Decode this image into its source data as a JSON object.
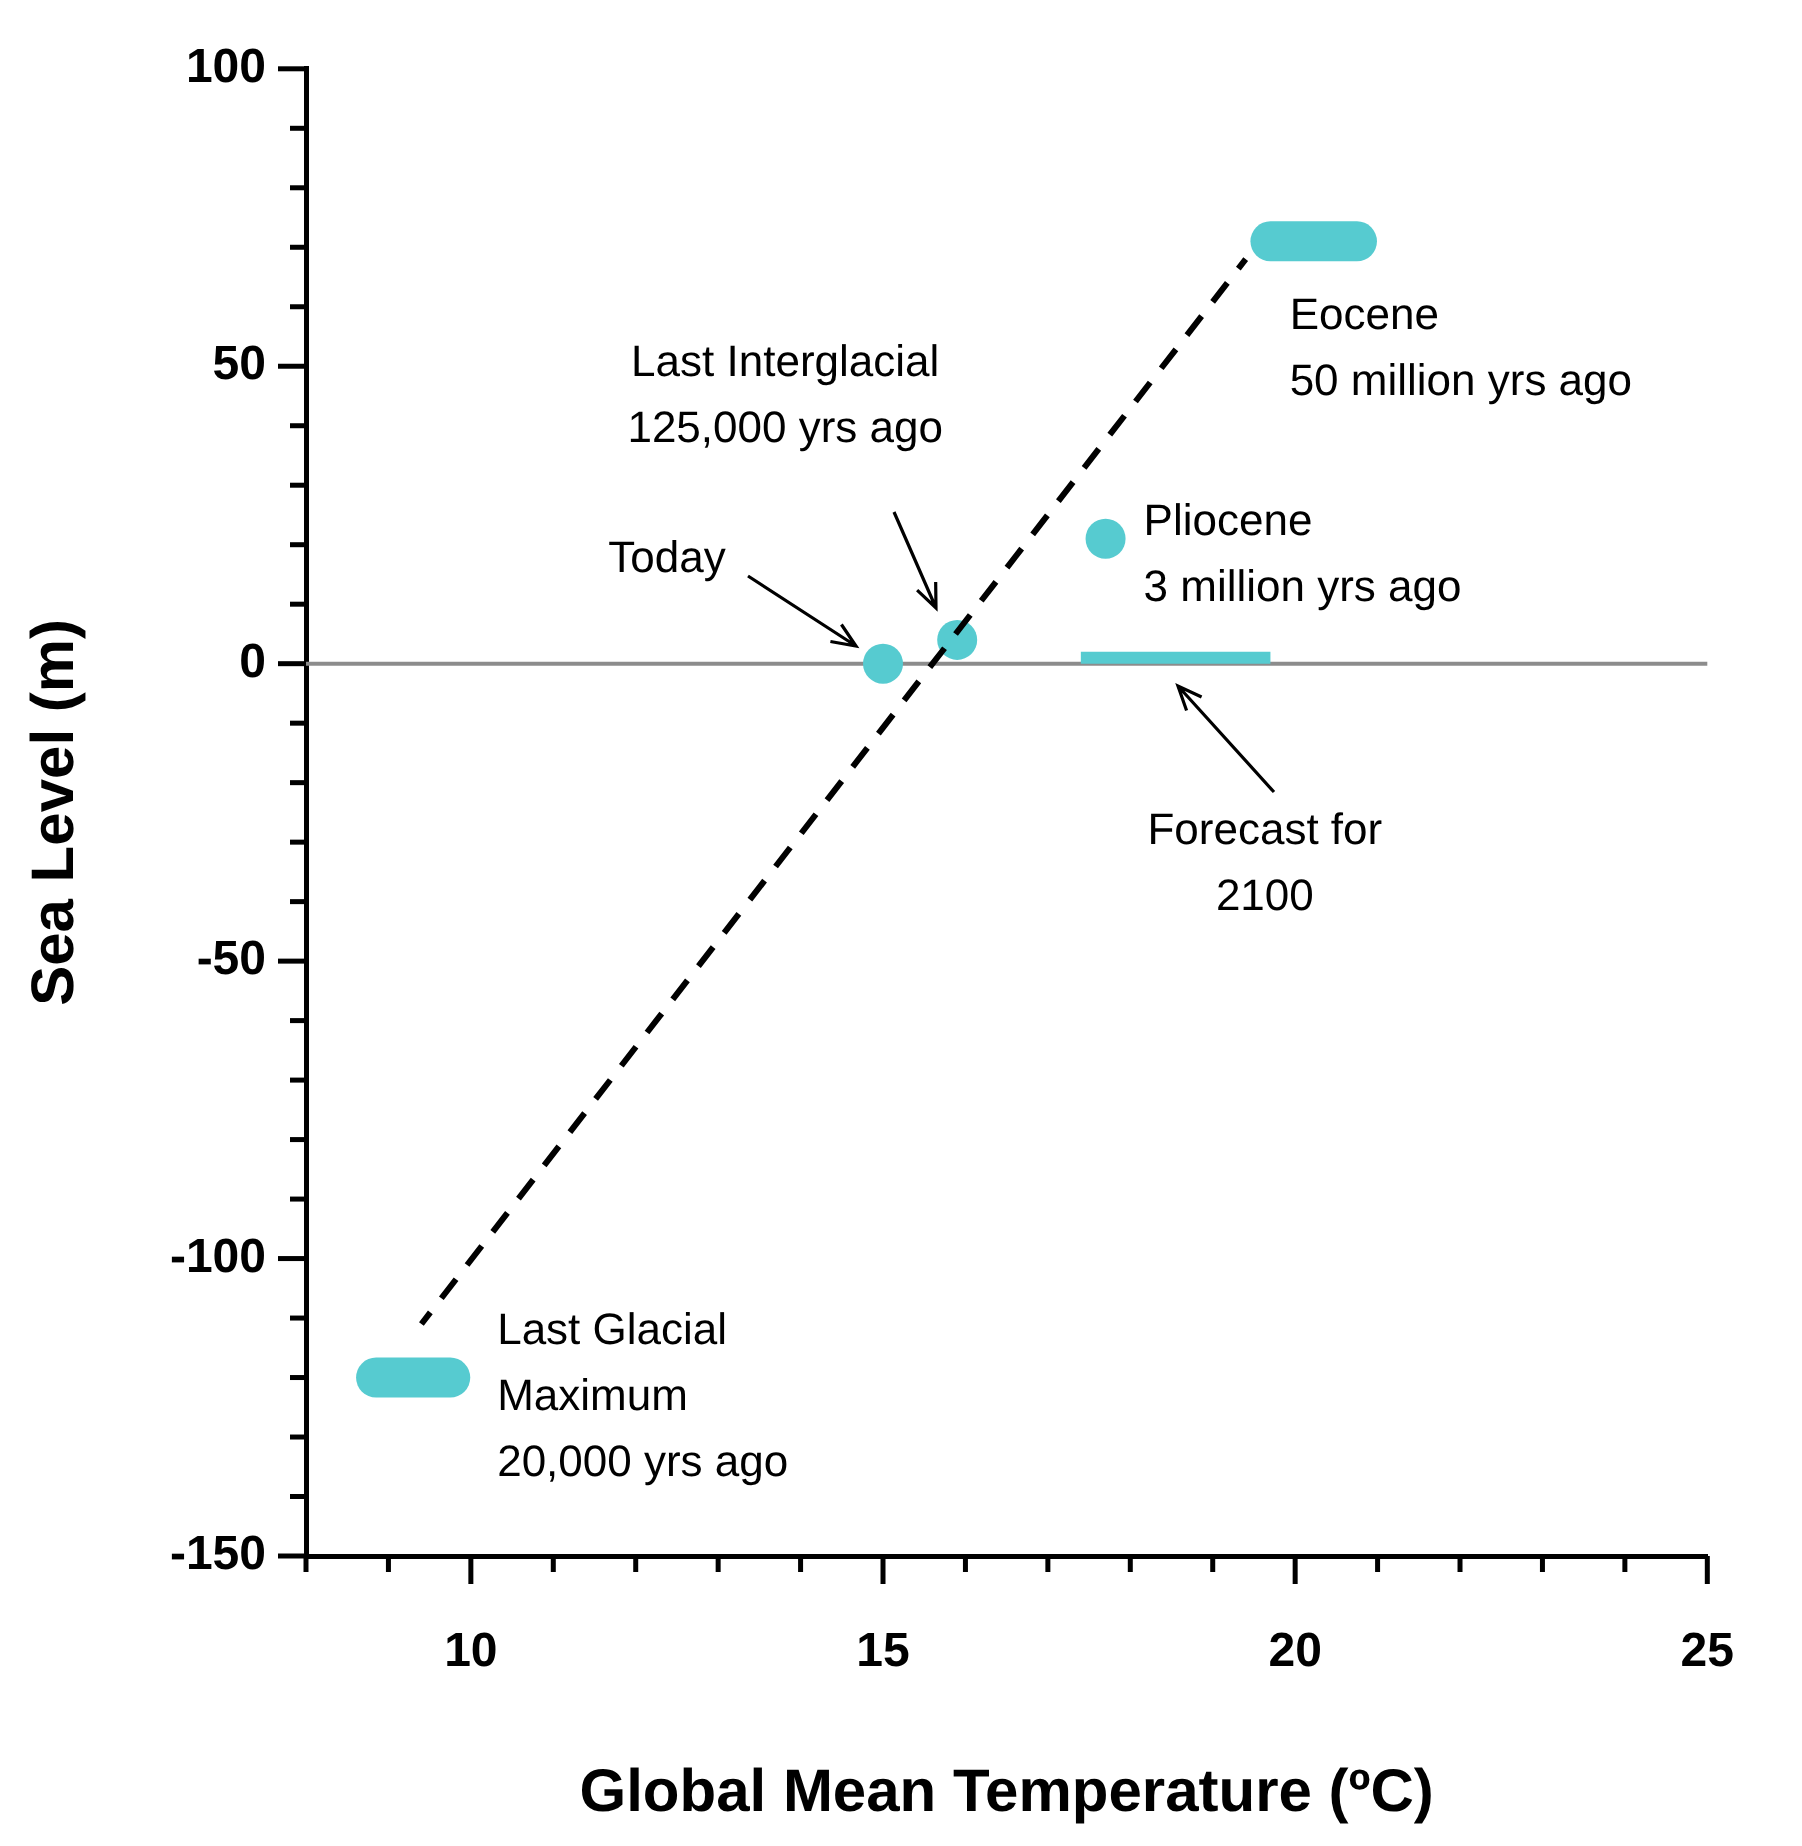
{
  "chart_data": {
    "type": "scatter",
    "xlabel": "Global Mean Temperature (ºC)",
    "ylabel": "Sea Level (m)",
    "xlim": [
      8,
      25
    ],
    "ylim": [
      -150,
      100
    ],
    "xticks": [
      {
        "value": 8,
        "label": null
      },
      {
        "value": 9,
        "label": null
      },
      10,
      {
        "value": 11,
        "label": null
      },
      {
        "value": 12,
        "label": null
      },
      {
        "value": 13,
        "label": null
      },
      {
        "value": 14,
        "label": null
      },
      15,
      {
        "value": 16,
        "label": null
      },
      {
        "value": 17,
        "label": null
      },
      {
        "value": 18,
        "label": null
      },
      {
        "value": 19,
        "label": null
      },
      20,
      {
        "value": 21,
        "label": null
      },
      {
        "value": 22,
        "label": null
      },
      {
        "value": 23,
        "label": null
      },
      {
        "value": 24,
        "label": null
      },
      25
    ],
    "yticks": [
      -150,
      {
        "value": -140,
        "label": null
      },
      {
        "value": -130,
        "label": null
      },
      {
        "value": -120,
        "label": null
      },
      {
        "value": -110,
        "label": null
      },
      -100,
      {
        "value": -90,
        "label": null
      },
      {
        "value": -80,
        "label": null
      },
      {
        "value": -70,
        "label": null
      },
      {
        "value": -60,
        "label": null
      },
      -50,
      {
        "value": -40,
        "label": null
      },
      {
        "value": -30,
        "label": null
      },
      {
        "value": -20,
        "label": null
      },
      {
        "value": -10,
        "label": null
      },
      0,
      {
        "value": 10,
        "label": null
      },
      {
        "value": 20,
        "label": null
      },
      {
        "value": 30,
        "label": null
      },
      {
        "value": 40,
        "label": null
      },
      50,
      {
        "value": 60,
        "label": null
      },
      {
        "value": 70,
        "label": null
      },
      {
        "value": 80,
        "label": null
      },
      {
        "value": 90,
        "label": null
      },
      100
    ],
    "grid": false,
    "legend": false,
    "marker": "circle",
    "ref_lines": [
      {
        "axis": "y",
        "value": 0,
        "color": "#8c8c8c"
      }
    ],
    "series": [
      {
        "type": "line",
        "color": "#000000",
        "line_style": "dashed",
        "marker": "none",
        "x": [
          9.4,
          19.4
        ],
        "values": [
          -111,
          68
        ]
      },
      {
        "type": "line",
        "color": "#56cbd0",
        "line_style": "solid",
        "marker": "none",
        "x": [
          17.4,
          19.7
        ],
        "values": [
          1,
          1
        ]
      },
      {
        "type": "line",
        "color": "#56cbd0",
        "line_style": "solid",
        "marker": "none",
        "x": [
          8.85,
          9.75
        ],
        "values": [
          -120,
          -120
        ]
      },
      {
        "type": "line",
        "color": "#56cbd0",
        "line_style": "solid",
        "marker": "none",
        "x": [
          19.7,
          20.75
        ],
        "values": [
          71,
          71
        ]
      },
      {
        "color": "#56cbd0",
        "x": [
          15,
          15.9,
          17.7
        ],
        "values": [
          0,
          4,
          21
        ]
      }
    ],
    "annotations": [
      {
        "text": "Last Glacial\nMaximum\n20,000 yrs ago",
        "x": 9.3,
        "y": -120
      },
      "Today",
      "Last Interglacial\n125,000 yrs ago",
      {
        "text": "Pliocene\n3 million yrs ago",
        "x": 17.7,
        "y": 21
      },
      {
        "text": "Eocene\n50 million yrs ago",
        "x": 20.2,
        "y": 71
      },
      "Forecast for\n2100"
    ]
  }
}
